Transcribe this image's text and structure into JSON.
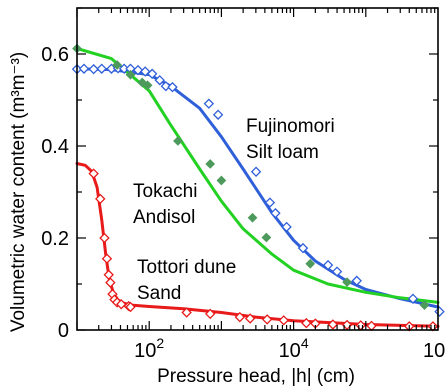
{
  "chart_data": {
    "type": "scatter",
    "xlabel": "Pressure head, |h| (cm)",
    "ylabel": "Volumetric water content (m³m⁻³)",
    "xscale": "log",
    "xlim": [
      10,
      1000000
    ],
    "ylim": [
      0,
      0.7
    ],
    "x_ticks": [
      {
        "value": 100,
        "base": "10",
        "exp": "2"
      },
      {
        "value": 10000,
        "base": "10",
        "exp": "4"
      },
      {
        "value": 1000000,
        "base": "10",
        "exp": "6"
      }
    ],
    "y_ticks": [
      {
        "value": 0,
        "label": "0"
      },
      {
        "value": 0.2,
        "label": "0.2"
      },
      {
        "value": 0.4,
        "label": "0.4"
      },
      {
        "value": 0.6,
        "label": "0.6"
      }
    ],
    "annotations": [
      {
        "lines": [
          "Fujinomori",
          "Silt loam"
        ]
      },
      {
        "lines": [
          "Tokachi",
          "Andisol"
        ]
      },
      {
        "lines": [
          "Tottori dune",
          "Sand"
        ]
      }
    ],
    "series": [
      {
        "color": "#2f5fd9",
        "marker": "open-diamond",
        "points": [
          [
            10,
            0.567
          ],
          [
            12.5,
            0.568
          ],
          [
            17,
            0.567
          ],
          [
            22,
            0.568
          ],
          [
            30,
            0.568
          ],
          [
            37,
            0.569
          ],
          [
            45,
            0.568
          ],
          [
            55,
            0.568
          ],
          [
            70,
            0.565
          ],
          [
            88,
            0.562
          ],
          [
            110,
            0.557
          ],
          [
            140,
            0.543
          ],
          [
            170,
            0.53
          ],
          [
            210,
            0.528
          ],
          [
            670,
            0.492
          ],
          [
            900,
            0.468
          ],
          [
            3020,
            0.344
          ],
          [
            4700,
            0.277
          ],
          [
            5600,
            0.254
          ],
          [
            8000,
            0.224
          ],
          [
            13500,
            0.178
          ],
          [
            30000,
            0.141
          ],
          [
            40000,
            0.127
          ],
          [
            75000,
            0.107
          ],
          [
            450000,
            0.068
          ],
          [
            1050000,
            0.04
          ]
        ],
        "curve": [
          [
            10,
            0.568
          ],
          [
            30,
            0.566
          ],
          [
            100,
            0.555
          ],
          [
            200,
            0.53
          ],
          [
            500,
            0.482
          ],
          [
            1000,
            0.42
          ],
          [
            2000,
            0.35
          ],
          [
            5000,
            0.255
          ],
          [
            10000,
            0.195
          ],
          [
            20000,
            0.15
          ],
          [
            50000,
            0.11
          ],
          [
            100000,
            0.088
          ],
          [
            300000,
            0.068
          ],
          [
            1000000,
            0.05
          ]
        ]
      },
      {
        "color": "#4d9a5c",
        "marker": "filled-diamond",
        "points": [
          [
            10,
            0.612
          ],
          [
            36,
            0.576
          ],
          [
            55,
            0.555
          ],
          [
            80,
            0.538
          ],
          [
            95,
            0.532
          ],
          [
            250,
            0.411
          ],
          [
            700,
            0.361
          ],
          [
            1000,
            0.325
          ],
          [
            2700,
            0.244
          ],
          [
            4200,
            0.201
          ],
          [
            17000,
            0.144
          ],
          [
            55000,
            0.104
          ],
          [
            650000,
            0.054
          ]
        ],
        "curve": [
          [
            10,
            0.612
          ],
          [
            30,
            0.59
          ],
          [
            100,
            0.52
          ],
          [
            200,
            0.445
          ],
          [
            500,
            0.35
          ],
          [
            1000,
            0.28
          ],
          [
            2000,
            0.22
          ],
          [
            5000,
            0.165
          ],
          [
            10000,
            0.13
          ],
          [
            30000,
            0.1
          ],
          [
            100000,
            0.082
          ],
          [
            300000,
            0.07
          ],
          [
            1000000,
            0.06
          ]
        ],
        "curve_color": "#22d122"
      },
      {
        "color": "#e81a1a",
        "marker": "open-diamond",
        "points": [
          [
            17,
            0.34
          ],
          [
            21,
            0.285
          ],
          [
            24,
            0.2
          ],
          [
            26,
            0.155
          ],
          [
            27.5,
            0.12
          ],
          [
            29,
            0.103
          ],
          [
            31,
            0.078
          ],
          [
            33,
            0.066
          ],
          [
            36,
            0.06
          ],
          [
            41,
            0.056
          ],
          [
            52,
            0.052
          ],
          [
            55,
            0.05
          ],
          [
            330,
            0.038
          ],
          [
            700,
            0.035
          ],
          [
            1800,
            0.028
          ],
          [
            2500,
            0.025
          ],
          [
            4300,
            0.023
          ],
          [
            7300,
            0.021
          ],
          [
            15000,
            0.015
          ],
          [
            20000,
            0.014
          ],
          [
            35000,
            0.012
          ],
          [
            55000,
            0.011
          ],
          [
            85000,
            0.01
          ],
          [
            120000,
            0.009
          ],
          [
            400000,
            0.008
          ],
          [
            850000,
            0.008
          ]
        ],
        "curve": [
          [
            10,
            0.362
          ],
          [
            13,
            0.358
          ],
          [
            16,
            0.345
          ],
          [
            19,
            0.31
          ],
          [
            22,
            0.24
          ],
          [
            25,
            0.165
          ],
          [
            28,
            0.11
          ],
          [
            32,
            0.08
          ],
          [
            37,
            0.065
          ],
          [
            45,
            0.058
          ],
          [
            60,
            0.054
          ],
          [
            100,
            0.051
          ],
          [
            300,
            0.046
          ],
          [
            1000,
            0.038
          ],
          [
            3000,
            0.028
          ],
          [
            10000,
            0.02
          ],
          [
            100000,
            0.012
          ],
          [
            1000000,
            0.008
          ]
        ]
      }
    ]
  }
}
